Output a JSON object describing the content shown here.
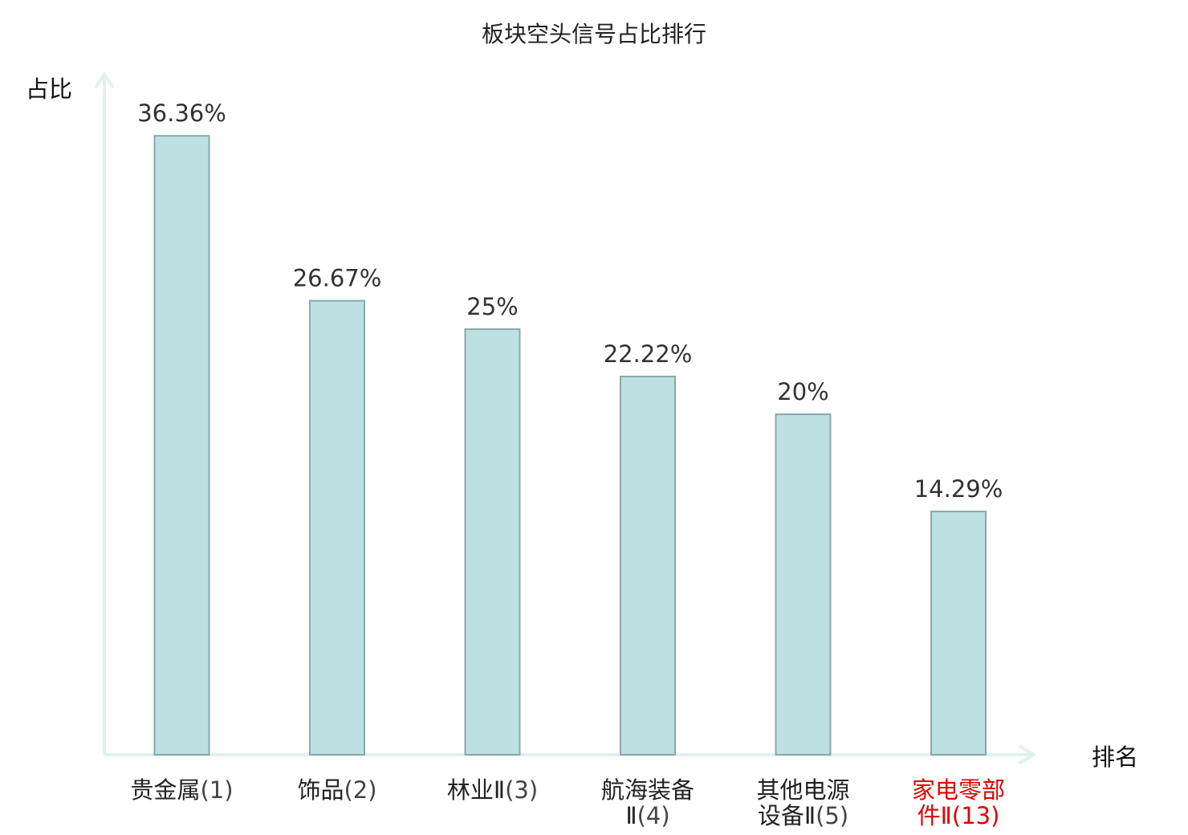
{
  "chart_data": {
    "type": "bar",
    "title": "板块空头信号占比排行",
    "ylabel": "占比",
    "xlabel": "排名",
    "ylim": [
      0,
      40
    ],
    "grid": false,
    "categories": [
      {
        "name_lines": [
          "贵金属"
        ],
        "rank": "(1)",
        "highlight": false
      },
      {
        "name_lines": [
          "饰品"
        ],
        "rank": "(2)",
        "highlight": false
      },
      {
        "name_lines": [
          "林业Ⅱ"
        ],
        "rank": "(3)",
        "highlight": false
      },
      {
        "name_lines": [
          "航海装备",
          "Ⅱ"
        ],
        "rank": "(4)",
        "highlight": false
      },
      {
        "name_lines": [
          "其他电源",
          "设备Ⅱ"
        ],
        "rank": "(5)",
        "highlight": false
      },
      {
        "name_lines": [
          "家电零部",
          "件Ⅱ"
        ],
        "rank": "(13)",
        "highlight": true
      }
    ],
    "values": [
      36.36,
      26.67,
      25,
      22.22,
      20,
      14.29
    ],
    "value_labels": [
      "36.36%",
      "26.67%",
      "25%",
      "22.22%",
      "20%",
      "14.29%"
    ]
  },
  "colors": {
    "bar_fill": "#bde0e3",
    "bar_stroke": "#8aa8aa",
    "axis": "#dff2ef",
    "highlight": "#e00000"
  }
}
